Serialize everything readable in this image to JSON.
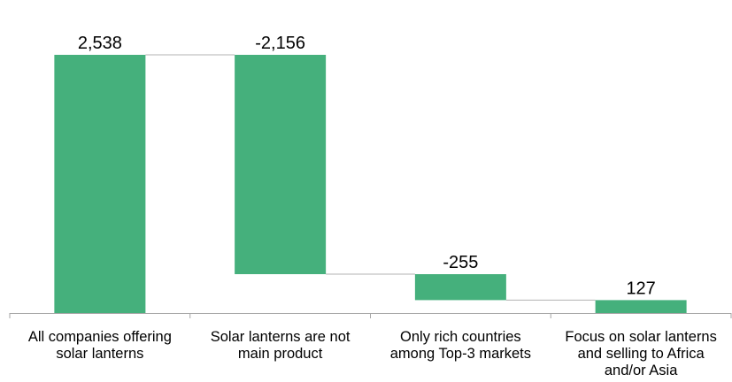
{
  "chart_data": {
    "type": "bar",
    "subtype": "waterfall",
    "title": "",
    "xlabel": "",
    "ylabel": "",
    "categories": [
      [
        "All companies offering",
        "solar lanterns"
      ],
      [
        "Solar lanterns are not",
        "main product"
      ],
      [
        "Only rich countries",
        "among Top-3 markets"
      ],
      [
        "Focus on solar lanterns",
        "and selling to Africa",
        "and/or Asia"
      ]
    ],
    "values": [
      2538,
      -2156,
      -255,
      127
    ],
    "value_labels": [
      "2,538",
      "-2,156",
      "-255",
      "127"
    ],
    "kinds": [
      "total",
      "delta",
      "delta",
      "total"
    ],
    "ylim": [
      0,
      2538
    ],
    "grid": false,
    "legend": "none",
    "colors": {
      "bar": "#45b07c",
      "connector": "#b3b3b3",
      "axis": "#a6a6a6"
    }
  }
}
